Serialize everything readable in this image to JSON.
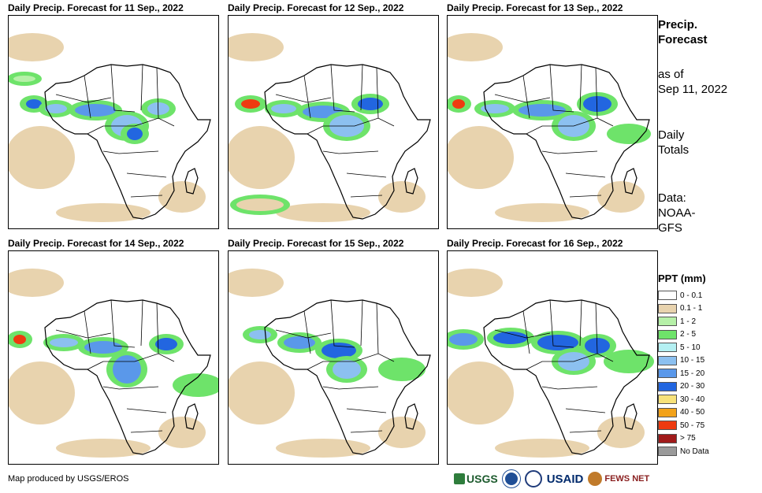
{
  "panels": [
    {
      "title": "Daily Precip. Forecast for 11 Sep., 2022"
    },
    {
      "title": "Daily Precip. Forecast for 12 Sep., 2022"
    },
    {
      "title": "Daily Precip. Forecast for 13 Sep., 2022"
    },
    {
      "title": "Daily Precip. Forecast for 14 Sep., 2022"
    },
    {
      "title": "Daily Precip. Forecast for 15 Sep., 2022"
    },
    {
      "title": "Daily Precip. Forecast for 16 Sep., 2022"
    }
  ],
  "sidebar": {
    "heading_line1": "Precip.",
    "heading_line2": "Forecast",
    "asof_line1": "as of",
    "asof_line2": "Sep 11, 2022",
    "totals_line1": "Daily",
    "totals_line2": "Totals",
    "data_line1": "Data:",
    "data_line2": "NOAA-",
    "data_line3": "GFS"
  },
  "legend": {
    "title": "PPT (mm)",
    "items": [
      {
        "label": "0 - 0.1",
        "color": "#ffffff"
      },
      {
        "label": "0.1 - 1",
        "color": "#e8d3ae"
      },
      {
        "label": "1 - 2",
        "color": "#b6f0a8"
      },
      {
        "label": "2 - 5",
        "color": "#6ee36a"
      },
      {
        "label": "5 - 10",
        "color": "#b4f0f2"
      },
      {
        "label": "10 - 15",
        "color": "#8cc0f0"
      },
      {
        "label": "15 - 20",
        "color": "#5a98ea"
      },
      {
        "label": "20 - 30",
        "color": "#2266e0"
      },
      {
        "label": "30 - 40",
        "color": "#f7e27a"
      },
      {
        "label": "40 - 50",
        "color": "#f2a21a"
      },
      {
        "label": "50 - 75",
        "color": "#ee3a10"
      },
      {
        "label": "> 75",
        "color": "#a01a1a"
      },
      {
        "label": "No Data",
        "color": "#9a9a9a"
      }
    ]
  },
  "credit": "Map produced by USGS/EROS",
  "logos": {
    "usgs": "USGS",
    "usaid": "USAID",
    "fews": "FEWS NET"
  }
}
